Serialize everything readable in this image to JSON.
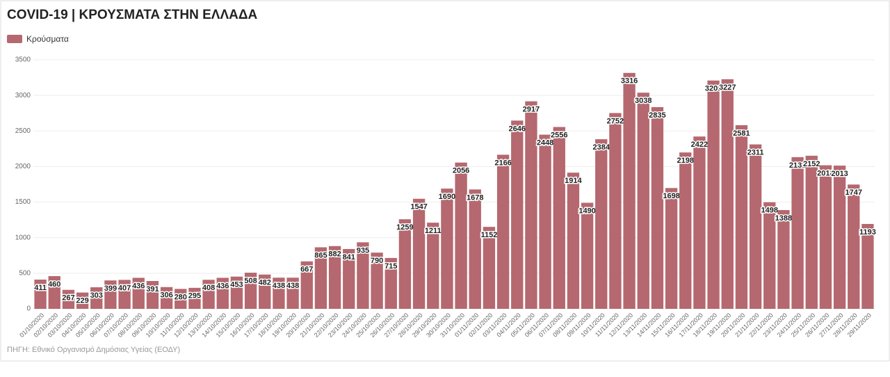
{
  "chart_data": {
    "type": "bar",
    "title": "COVID-19 | ΚΡΟΥΣΜΑΤΑ ΣΤΗΝ ΕΛΛΑΔΑ",
    "source": "ΠΗΓΗ: Εθνικό Οργανισμό Δημόσιας Υγείας (ΕΟΔΥ)",
    "categories": [
      "01/10/2020",
      "02/10/2020",
      "03/10/2020",
      "04/10/2020",
      "05/10/2020",
      "06/10/2020",
      "07/10/2020",
      "08/10/2020",
      "09/10/2020",
      "10/10/2020",
      "11/10/2020",
      "12/10/2020",
      "13/10/2020",
      "14/10/2020",
      "15/10/2020",
      "16/10/2020",
      "17/10/2020",
      "18/10/2020",
      "19/10/2020",
      "20/10/2020",
      "21/10/2020",
      "22/10/2020",
      "23/10/2020",
      "24/10/2020",
      "25/10/2020",
      "26/10/2020",
      "27/10/2020",
      "28/10/2020",
      "29/10/2020",
      "30/10/2020",
      "31/10/2020",
      "01/11/2020",
      "02/11/2020",
      "03/11/2020",
      "04/11/2020",
      "05/11/2020",
      "06/11/2020",
      "07/11/2020",
      "08/11/2020",
      "09/11/2020",
      "10/11/2020",
      "11/11/2020",
      "12/11/2020",
      "13/11/2020",
      "14/11/2020",
      "15/11/2020",
      "16/11/2020",
      "17/11/2020",
      "18/11/2020",
      "19/11/2020",
      "20/11/2020",
      "21/11/2020",
      "22/11/2020",
      "23/11/2020",
      "24/11/2020",
      "25/11/2020",
      "26/11/2020",
      "27/11/2020",
      "28/11/2020",
      "29/11/2020"
    ],
    "series": [
      {
        "name": "Κρούσματα",
        "color": "#b5686f",
        "values": [
          411,
          460,
          267,
          229,
          303,
          399,
          407,
          436,
          391,
          306,
          280,
          295,
          408,
          436,
          453,
          508,
          482,
          438,
          438,
          667,
          865,
          882,
          841,
          935,
          790,
          715,
          1259,
          1547,
          1211,
          1690,
          2056,
          1678,
          1152,
          2166,
          2646,
          2917,
          2448,
          2556,
          1914,
          1490,
          2384,
          2752,
          3316,
          3038,
          2835,
          1698,
          2198,
          2422,
          3209,
          3227,
          2581,
          2311,
          1498,
          1388,
          2132,
          2152,
          2018,
          2013,
          1747,
          1193
        ]
      }
    ],
    "ylim": [
      0,
      3500
    ],
    "yticks": [
      0,
      500,
      1000,
      1500,
      2000,
      2500,
      3000,
      3500
    ],
    "grid": true,
    "legend": "top-left"
  }
}
